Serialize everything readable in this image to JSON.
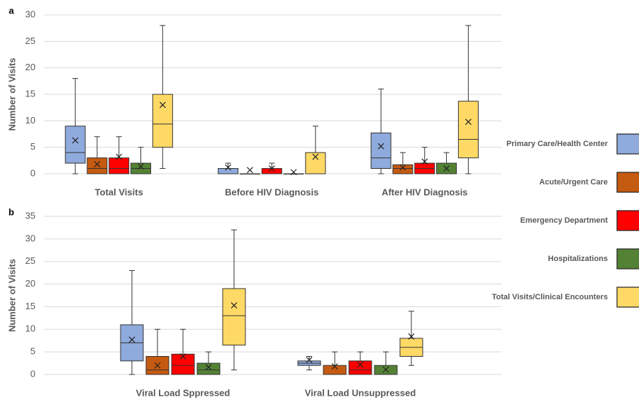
{
  "legend": [
    {
      "name": "Primary Care/Health Center",
      "color": "#8faadc"
    },
    {
      "name": "Acute/Urgent Care",
      "color": "#c55a11"
    },
    {
      "name": "Emergency Department",
      "color": "#ff0000"
    },
    {
      "name": "Hospitalizations",
      "color": "#548235"
    },
    {
      "name": "Total Visits/Clinical Encounters",
      "color": "#ffd966"
    }
  ],
  "chart_data": [
    {
      "type": "box",
      "panel_label": "a",
      "ylabel": "Number of Visits",
      "categories": [
        "Total Visits",
        "Before HIV Diagnosis",
        "After HIV Diagnosis"
      ],
      "ylim": [
        0,
        30
      ],
      "yticks": [
        0,
        5,
        10,
        15,
        20,
        25,
        30
      ],
      "grid": true,
      "series": [
        {
          "min": [
            0,
            0,
            0
          ],
          "q1": [
            2,
            0,
            1
          ],
          "median": [
            4,
            0,
            3
          ],
          "q3": [
            9,
            1,
            7.7
          ],
          "max": [
            18,
            2,
            16
          ],
          "mean": [
            6.3,
            1.2,
            5.2
          ]
        },
        {
          "min": [
            0,
            0,
            0
          ],
          "q1": [
            0,
            0,
            0
          ],
          "median": [
            1,
            0,
            1
          ],
          "q3": [
            3,
            0,
            1.7
          ],
          "max": [
            7,
            0,
            4
          ],
          "mean": [
            1.8,
            0.7,
            1.2
          ]
        },
        {
          "min": [
            0,
            0,
            0
          ],
          "q1": [
            0,
            0,
            0
          ],
          "median": [
            1,
            0,
            1
          ],
          "q3": [
            3,
            1,
            2
          ],
          "max": [
            7,
            2,
            5
          ],
          "mean": [
            3.2,
            1,
            2.3
          ]
        },
        {
          "min": [
            0,
            0,
            0
          ],
          "q1": [
            0,
            0,
            0
          ],
          "median": [
            1,
            0,
            0
          ],
          "q3": [
            2,
            0,
            2
          ],
          "max": [
            5,
            0,
            4
          ],
          "mean": [
            1.4,
            0.3,
            1
          ]
        },
        {
          "min": [
            1,
            0,
            0
          ],
          "q1": [
            5,
            0,
            3
          ],
          "median": [
            9.4,
            0,
            6.5
          ],
          "q3": [
            15,
            4,
            13.7
          ],
          "max": [
            28,
            9,
            28
          ],
          "mean": [
            13,
            3.2,
            9.8
          ]
        }
      ]
    },
    {
      "type": "box",
      "panel_label": "b",
      "ylabel": "Number of Visits",
      "categories": [
        "Viral Load Sppressed",
        "Viral Load Unsuppressed"
      ],
      "ylim": [
        0,
        35
      ],
      "yticks": [
        0,
        5,
        10,
        15,
        20,
        25,
        30,
        35
      ],
      "grid": true,
      "series": [
        {
          "min": [
            0,
            1
          ],
          "q1": [
            3,
            2
          ],
          "median": [
            7,
            2.5
          ],
          "q3": [
            11,
            3
          ],
          "max": [
            23,
            4
          ],
          "mean": [
            7.7,
            3.2
          ]
        },
        {
          "min": [
            0,
            0
          ],
          "q1": [
            0,
            0
          ],
          "median": [
            1,
            0
          ],
          "q3": [
            4,
            2
          ],
          "max": [
            10,
            5
          ],
          "mean": [
            2,
            1.8
          ]
        },
        {
          "min": [
            0,
            0
          ],
          "q1": [
            0,
            0
          ],
          "median": [
            2,
            1
          ],
          "q3": [
            4.5,
            3
          ],
          "max": [
            10,
            5
          ],
          "mean": [
            4,
            2.2
          ]
        },
        {
          "min": [
            0,
            0
          ],
          "q1": [
            0,
            0
          ],
          "median": [
            1,
            0
          ],
          "q3": [
            2.5,
            2
          ],
          "max": [
            5,
            5
          ],
          "mean": [
            1.6,
            1.1
          ]
        },
        {
          "min": [
            1,
            2
          ],
          "q1": [
            6.5,
            4
          ],
          "median": [
            13,
            6
          ],
          "q3": [
            19,
            8
          ],
          "max": [
            32,
            14
          ],
          "mean": [
            15.3,
            8.4
          ]
        }
      ]
    }
  ]
}
